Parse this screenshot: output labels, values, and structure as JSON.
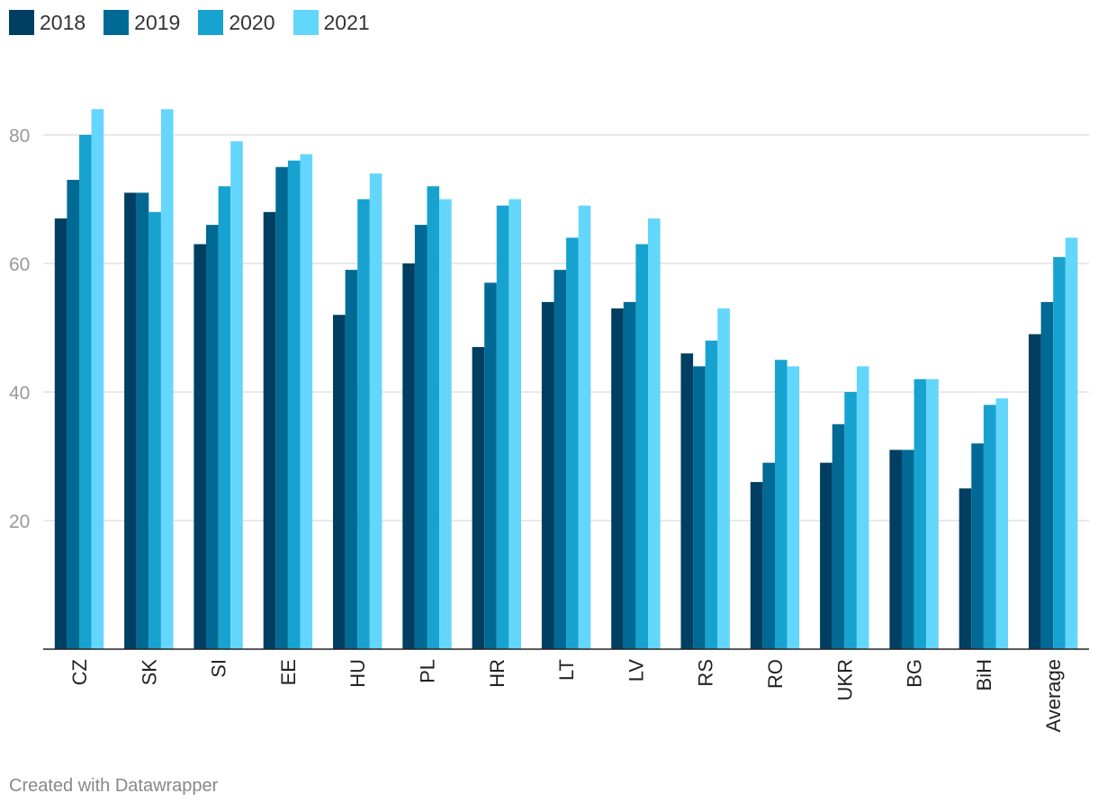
{
  "chart_data": {
    "type": "bar",
    "categories": [
      "CZ",
      "SK",
      "SI",
      "EE",
      "HU",
      "PL",
      "HR",
      "LT",
      "LV",
      "RS",
      "RO",
      "UKR",
      "BG",
      "BiH",
      "Average"
    ],
    "series": [
      {
        "name": "2018",
        "color": "#003f62",
        "values": [
          67,
          71,
          63,
          68,
          52,
          60,
          47,
          54,
          53,
          46,
          26,
          29,
          31,
          25,
          49
        ]
      },
      {
        "name": "2019",
        "color": "#006a94",
        "values": [
          73,
          71,
          66,
          75,
          59,
          66,
          57,
          59,
          54,
          44,
          29,
          35,
          31,
          32,
          54
        ]
      },
      {
        "name": "2020",
        "color": "#18a2cf",
        "values": [
          80,
          68,
          72,
          76,
          70,
          72,
          69,
          64,
          63,
          48,
          45,
          40,
          42,
          38,
          61
        ]
      },
      {
        "name": "2021",
        "color": "#63d6fc",
        "values": [
          84,
          84,
          79,
          77,
          74,
          70,
          70,
          69,
          67,
          53,
          44,
          44,
          42,
          39,
          64
        ]
      }
    ],
    "yticks": [
      "20",
      "40",
      "60",
      "80"
    ],
    "ylim": [
      0,
      90
    ],
    "grid": true,
    "legend": "top-left"
  },
  "footer": {
    "credit": "Created with Datawrapper"
  }
}
